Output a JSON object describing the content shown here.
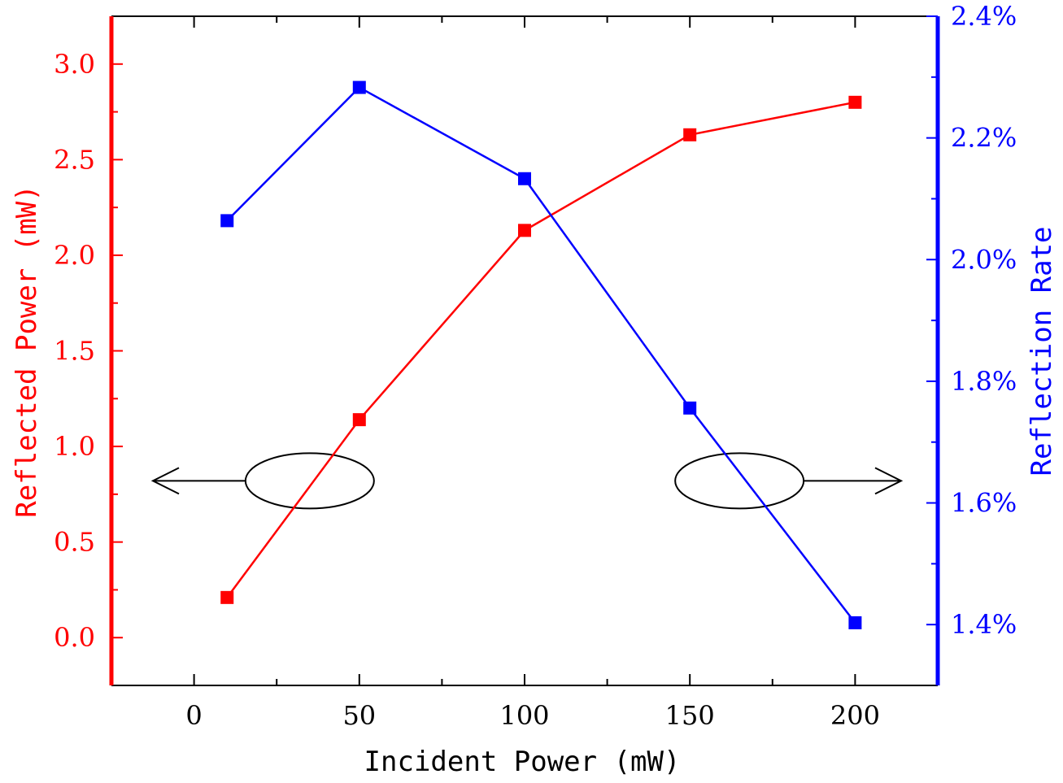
{
  "chart_data": {
    "type": "line",
    "xlabel": "Incident Power (mW)",
    "ylabel_left": "Reflected Power (mW)",
    "ylabel_right": "Reflection Rate",
    "xlim": [
      -25,
      225
    ],
    "ylim_left": [
      -0.25,
      3.25
    ],
    "ylim_right": [
      1.3,
      2.4
    ],
    "x_ticks": [
      "0",
      "50",
      "100",
      "150",
      "200"
    ],
    "y_left_ticks": [
      "0.0",
      "0.5",
      "1.0",
      "1.5",
      "2.0",
      "2.5",
      "3.0"
    ],
    "y_right_ticks": [
      "1.4%",
      "1.6%",
      "1.8%",
      "2.0%",
      "2.2%",
      "2.4%"
    ],
    "grid": false,
    "colors": {
      "left": "#ff0000",
      "right": "#0000ff",
      "axis": "#000000"
    },
    "series": [
      {
        "axis": "left",
        "color": "#ff0000",
        "marker": "square",
        "x": [
          10,
          50,
          100,
          150,
          200
        ],
        "y": [
          0.21,
          1.14,
          2.13,
          2.63,
          2.8
        ]
      },
      {
        "axis": "right",
        "color": "#0000ff",
        "marker": "square",
        "x": [
          10,
          50,
          100,
          150,
          200
        ],
        "y": [
          2.064,
          2.283,
          2.133,
          1.756,
          1.403
        ]
      }
    ],
    "annotations": [
      {
        "type": "ellipse-arrow",
        "points_to": "left",
        "center": [
          35,
          0.82
        ]
      },
      {
        "type": "ellipse-arrow",
        "points_to": "right",
        "center": [
          165,
          0.82
        ]
      }
    ]
  }
}
